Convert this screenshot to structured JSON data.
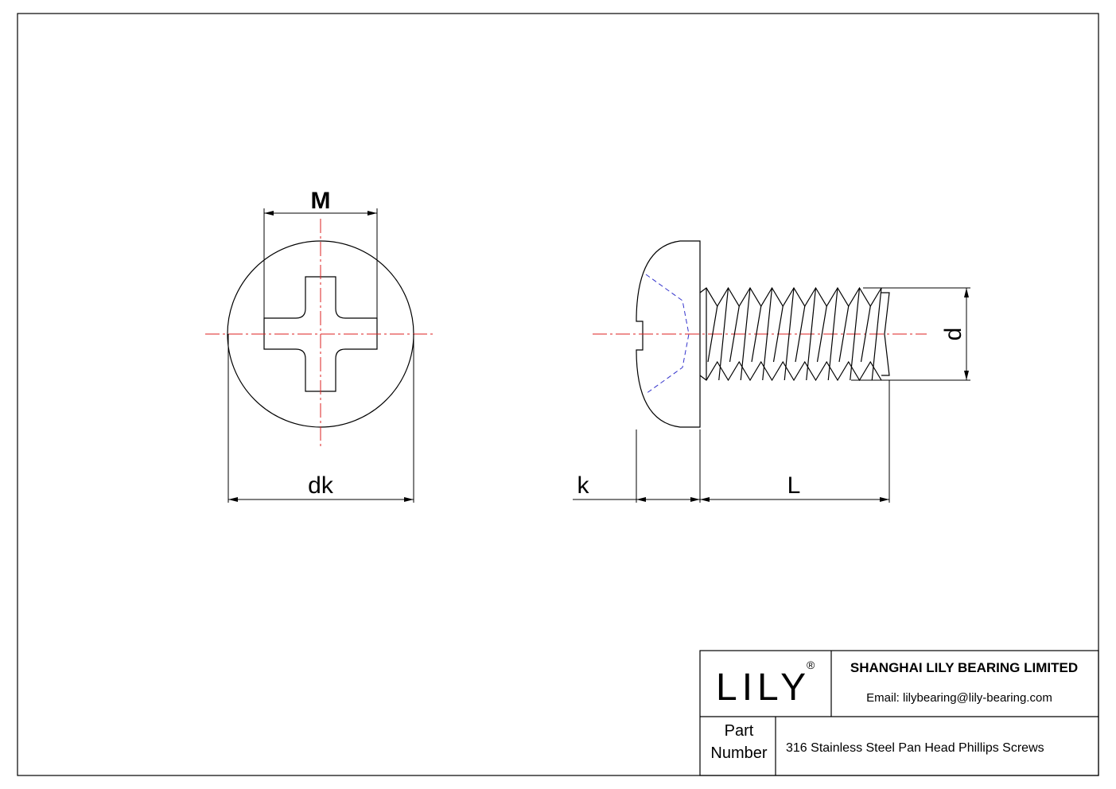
{
  "drawing": {
    "labels": {
      "M": "M",
      "dk": "dk",
      "k": "k",
      "L": "L",
      "d": "d"
    }
  },
  "title_block": {
    "logo": "LILY",
    "registered": "®",
    "company": "SHANGHAI LILY BEARING LIMITED",
    "email": "Email: lilybearing@lily-bearing.com",
    "part_label": [
      "Part",
      "Number"
    ],
    "part_name": "316 Stainless Steel Pan Head Phillips Screws"
  }
}
